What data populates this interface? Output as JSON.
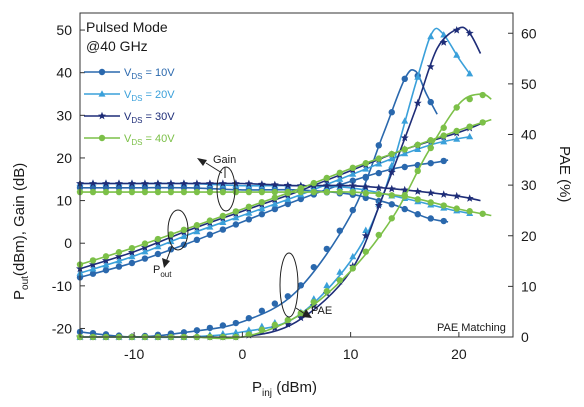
{
  "chart_data": {
    "type": "line",
    "title": "Pulsed Mode",
    "subtitle": "@40 GHz",
    "xlabel": "P_inj (dBm)",
    "ylabel_left": "P_out (dBm), Gain (dB)",
    "ylabel_right": "PAE (%)",
    "xlim": [
      -15,
      25
    ],
    "ylim_left": [
      -22,
      54
    ],
    "ylim_right": [
      0,
      64
    ],
    "x_ticks": [
      -10,
      0,
      10,
      20
    ],
    "y_ticks_left": [
      -20,
      -10,
      0,
      10,
      20,
      30,
      40,
      50
    ],
    "y_ticks_right": [
      0,
      10,
      20,
      30,
      40,
      50,
      60
    ],
    "grid": false,
    "legend_position": "top-left",
    "series": [
      {
        "name": "VDS = 10V",
        "vds": "10V",
        "color": "#2a68ad",
        "marker": "circle",
        "pout": [
          [
            -15,
            -8
          ],
          [
            -10,
            -4.5
          ],
          [
            -5,
            0
          ],
          [
            0,
            5
          ],
          [
            5,
            10
          ],
          [
            10,
            14.5
          ],
          [
            14,
            17.5
          ],
          [
            18,
            19
          ],
          [
            19,
            19.5
          ]
        ],
        "gain": [
          [
            -15,
            13
          ],
          [
            -10,
            13
          ],
          [
            -5,
            13
          ],
          [
            0,
            12.5
          ],
          [
            5,
            12.5
          ],
          [
            10,
            11.5
          ],
          [
            14,
            9
          ],
          [
            17,
            6
          ],
          [
            19,
            5
          ]
        ],
        "pae": [
          [
            -15,
            1
          ],
          [
            -10,
            0
          ],
          [
            -5,
            1
          ],
          [
            0,
            3
          ],
          [
            5,
            9
          ],
          [
            10,
            24
          ],
          [
            13,
            40
          ],
          [
            15,
            51
          ],
          [
            16,
            52.5
          ],
          [
            17,
            48
          ],
          [
            18,
            44
          ]
        ]
      },
      {
        "name": "VDS = 20V",
        "vds": "20V",
        "color": "#3aa0da",
        "marker": "triangle",
        "pout": [
          [
            -15,
            -7
          ],
          [
            -10,
            -3
          ],
          [
            -5,
            2
          ],
          [
            0,
            6.5
          ],
          [
            5,
            11
          ],
          [
            10,
            16
          ],
          [
            15,
            21
          ],
          [
            18,
            23.5
          ],
          [
            21,
            25
          ]
        ],
        "gain": [
          [
            -15,
            14
          ],
          [
            -10,
            14
          ],
          [
            -5,
            14
          ],
          [
            0,
            13.5
          ],
          [
            5,
            13.5
          ],
          [
            10,
            13
          ],
          [
            15,
            10.5
          ],
          [
            19,
            8
          ],
          [
            21,
            7
          ]
        ],
        "pae": [
          [
            -15,
            0
          ],
          [
            -10,
            0
          ],
          [
            -5,
            0
          ],
          [
            0,
            1
          ],
          [
            5,
            4
          ],
          [
            10,
            15
          ],
          [
            13,
            28
          ],
          [
            16,
            50
          ],
          [
            17.5,
            60
          ],
          [
            18.5,
            60
          ],
          [
            20,
            55
          ],
          [
            21,
            52
          ]
        ]
      },
      {
        "name": "VDS = 30V",
        "vds": "30V",
        "color": "#1e2d78",
        "marker": "star",
        "pout": [
          [
            -15,
            -6
          ],
          [
            -10,
            -2
          ],
          [
            -5,
            3
          ],
          [
            0,
            7.5
          ],
          [
            5,
            12
          ],
          [
            10,
            17
          ],
          [
            15,
            22
          ],
          [
            20,
            26
          ],
          [
            22,
            28
          ]
        ],
        "gain": [
          [
            -15,
            14
          ],
          [
            -10,
            14
          ],
          [
            -5,
            14
          ],
          [
            0,
            14
          ],
          [
            5,
            13.5
          ],
          [
            10,
            13.5
          ],
          [
            15,
            12.5
          ],
          [
            20,
            11
          ],
          [
            22,
            10
          ]
        ],
        "pae": [
          [
            -15,
            0
          ],
          [
            -10,
            0
          ],
          [
            -5,
            0
          ],
          [
            0,
            0
          ],
          [
            5,
            3
          ],
          [
            10,
            13
          ],
          [
            13,
            28
          ],
          [
            16,
            45
          ],
          [
            18,
            57
          ],
          [
            20,
            61
          ],
          [
            21,
            60
          ],
          [
            22,
            56
          ]
        ]
      },
      {
        "name": "VDS = 40V",
        "vds": "40V",
        "color": "#7cc048",
        "marker": "circle",
        "pout": [
          [
            -15,
            -5
          ],
          [
            -10,
            -1
          ],
          [
            -5,
            3.5
          ],
          [
            0,
            8
          ],
          [
            5,
            12.5
          ],
          [
            10,
            17.5
          ],
          [
            15,
            22
          ],
          [
            20,
            26.5
          ],
          [
            23,
            29
          ]
        ],
        "gain": [
          [
            -15,
            12
          ],
          [
            -10,
            12
          ],
          [
            -5,
            12
          ],
          [
            0,
            12
          ],
          [
            5,
            12
          ],
          [
            10,
            12
          ],
          [
            15,
            11
          ],
          [
            20,
            8
          ],
          [
            23,
            6.5
          ]
        ],
        "pae": [
          [
            -15,
            0
          ],
          [
            -10,
            0
          ],
          [
            -5,
            0
          ],
          [
            0,
            0
          ],
          [
            5,
            4
          ],
          [
            10,
            13
          ],
          [
            14,
            24
          ],
          [
            17,
            36
          ],
          [
            20,
            46
          ],
          [
            22,
            48
          ],
          [
            23,
            47
          ]
        ]
      }
    ],
    "annotations": [
      "Gain",
      "P_out",
      "PAE",
      "PAE Matching"
    ]
  },
  "labels": {
    "title_line1": "Pulsed Mode",
    "title_line2": "@40 GHz",
    "ylabel_left_main": "P",
    "ylabel_left_sub": "out",
    "ylabel_left_rest": "(dBm), Gain (dB)",
    "xlabel_main": "P",
    "xlabel_sub": "inj",
    "xlabel_rest": " (dBm)",
    "ylabel_right": "PAE (%)",
    "legend_prefix": "V",
    "legend_sub": "DS",
    "legend_eq": " = ",
    "annot_gain": "Gain",
    "annot_pout_main": "P",
    "annot_pout_sub": "out",
    "annot_pae": "PAE",
    "annot_matching": "PAE Matching"
  }
}
